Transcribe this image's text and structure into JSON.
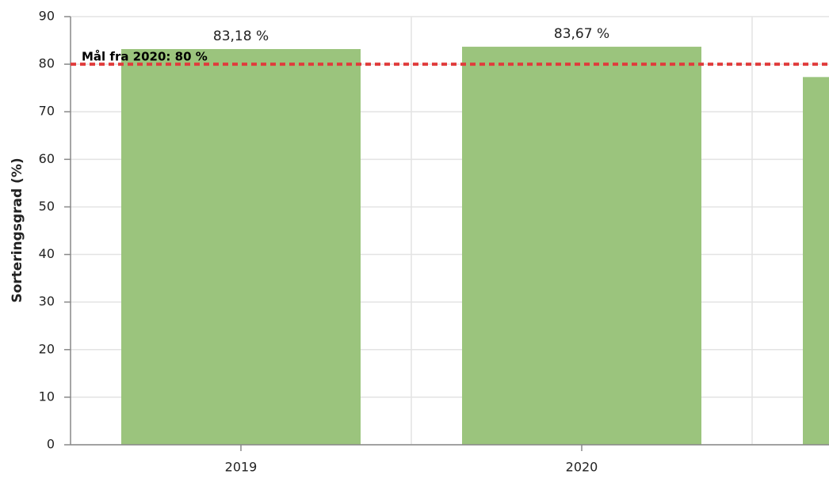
{
  "chart_data": {
    "type": "bar",
    "y_label": "Sorteringsgrad (%)",
    "categories": [
      "2019",
      "2020",
      null
    ],
    "values": [
      83.18,
      83.67,
      77.3
    ],
    "value_labels": [
      "83,18 %",
      "83,67 %",
      null
    ],
    "color": "#9bc47d",
    "ylim": [
      0,
      90
    ],
    "yticks": [
      0,
      10,
      20,
      30,
      40,
      50,
      60,
      70,
      80,
      90
    ],
    "grid": true,
    "target": {
      "value": 80,
      "label": "Mål fra 2020: 80 %",
      "color": "#e03c3c"
    }
  }
}
